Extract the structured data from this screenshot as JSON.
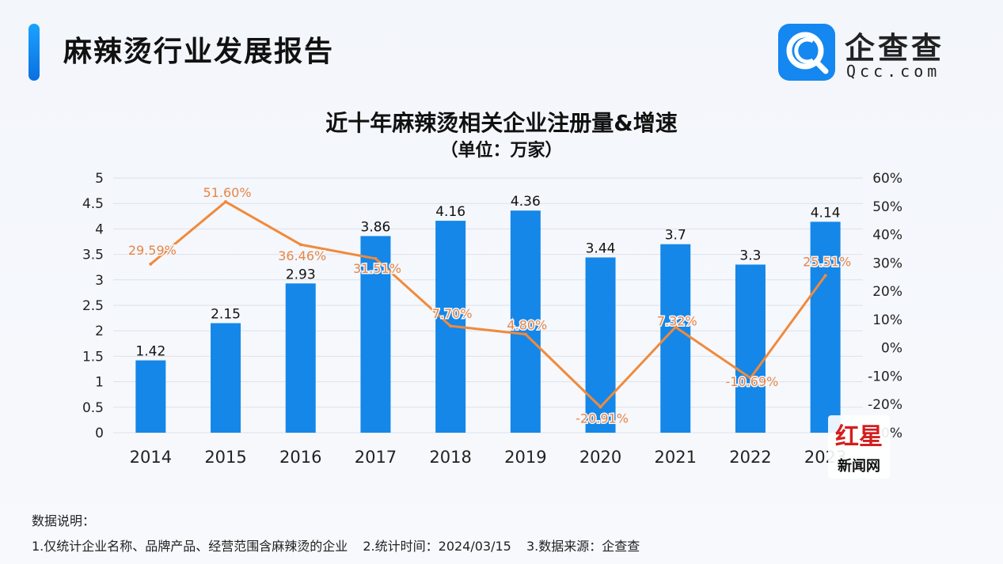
{
  "header": {
    "title": "麻辣烫行业发展报告",
    "logo": {
      "name": "企查查",
      "url": "Qcc.com"
    }
  },
  "colors": {
    "accent": "#1487f0",
    "bar": "#1487e8",
    "line": "#f08a3c",
    "line_label": "#e6854a",
    "watermark_red": "#d41e1e"
  },
  "chart_data": {
    "type": "bar",
    "title": "近十年麻辣烫相关企业注册量&增速",
    "subtitle": "（单位：万家）",
    "categories": [
      "2014",
      "2015",
      "2016",
      "2017",
      "2018",
      "2019",
      "2020",
      "2021",
      "2022",
      "2023"
    ],
    "series": [
      {
        "type": "bar",
        "values": [
          1.42,
          2.15,
          2.93,
          3.86,
          4.16,
          4.36,
          3.44,
          3.7,
          3.3,
          4.14
        ],
        "labels": [
          "1.42",
          "2.15",
          "2.93",
          "3.86",
          "4.16",
          "4.36",
          "3.44",
          "3.7",
          "3.3",
          "4.14"
        ]
      },
      {
        "type": "line",
        "axis": "right",
        "values": [
          29.59,
          51.6,
          36.46,
          31.51,
          7.7,
          4.8,
          -20.91,
          7.32,
          -10.69,
          25.51
        ],
        "labels": [
          "29.59%",
          "51.60%",
          "36.46%",
          "31.51%",
          "7.70%",
          "4.80%",
          "-20.91%",
          "7.32%",
          "-10.69%",
          "25.51%"
        ]
      }
    ],
    "y_left": {
      "min": 0,
      "max": 5,
      "ticks": [
        "0",
        "0.5",
        "1",
        "1.5",
        "2",
        "2.5",
        "3",
        "3.5",
        "4",
        "4.5",
        "5"
      ]
    },
    "y_right": {
      "min": -30,
      "max": 60,
      "ticks": [
        "-20%",
        "-10%",
        "0%",
        "10%",
        "20%",
        "30%",
        "40%",
        "50%",
        "60%"
      ],
      "bottom_label": "0%"
    },
    "grid": true,
    "legend": "none"
  },
  "notes": {
    "header": "数据说明：",
    "items": [
      "1.仅统计企业名称、品牌产品、经营范围含麻辣烫的企业",
      "2.统计时间：2024/03/15",
      "3.数据来源：企查查"
    ]
  },
  "watermark": {
    "brand": "红星",
    "name": "新闻网"
  }
}
